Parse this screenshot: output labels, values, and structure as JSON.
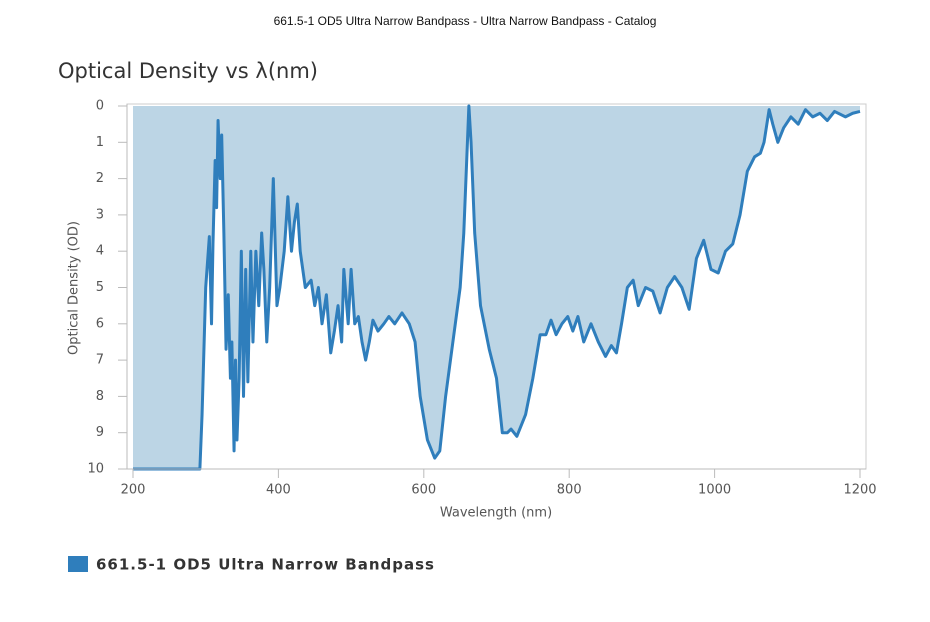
{
  "header": {
    "title": "661.5-1 OD5 Ultra Narrow Bandpass - Ultra Narrow Bandpass - Catalog"
  },
  "chart_data": {
    "type": "area",
    "title": "Optical Density vs λ(nm)",
    "x_label": "Wavelength (nm)",
    "y_label": "Optical Density (OD)",
    "x": [
      200,
      292,
      295,
      300,
      305,
      308,
      310,
      313,
      315,
      317,
      320,
      322,
      325,
      328,
      331,
      334,
      336,
      339,
      341,
      343,
      346,
      349,
      352,
      355,
      358,
      362,
      365,
      369,
      373,
      377,
      380,
      384,
      388,
      393,
      398,
      402,
      408,
      413,
      418,
      422,
      426,
      430,
      437,
      445,
      450,
      455,
      460,
      466,
      472,
      477,
      482,
      487,
      490,
      496,
      500,
      505,
      510,
      515,
      520,
      525,
      530,
      537,
      545,
      552,
      560,
      570,
      580,
      588,
      595,
      605,
      615,
      622,
      630,
      640,
      650,
      655,
      660,
      662,
      665,
      670,
      678,
      690,
      700,
      708,
      715,
      720,
      728,
      740,
      750,
      760,
      768,
      775,
      782,
      790,
      798,
      805,
      812,
      820,
      830,
      840,
      850,
      858,
      865,
      872,
      880,
      888,
      895,
      905,
      915,
      925,
      935,
      945,
      955,
      965,
      975,
      985,
      995,
      1005,
      1015,
      1025,
      1035,
      1045,
      1055,
      1063,
      1068,
      1075,
      1080,
      1087,
      1095,
      1105,
      1115,
      1125,
      1135,
      1145,
      1155,
      1165,
      1180,
      1190,
      1200
    ],
    "series": [
      {
        "name": "661.5-1 OD5 Ultra Narrow Bandpass",
        "color": "#2f7ebc",
        "fill": "#bcd5e5",
        "values": [
          10,
          10,
          8.5,
          5,
          3.6,
          6,
          3.8,
          1.5,
          2.8,
          0.4,
          2,
          0.8,
          3.5,
          6.7,
          5.2,
          7.5,
          6.5,
          9.5,
          7,
          9.2,
          7.5,
          4,
          8,
          4.5,
          7.6,
          4,
          6.5,
          4,
          5.5,
          3.5,
          4.5,
          6.5,
          5,
          2,
          5.5,
          5,
          4,
          2.5,
          4,
          3.2,
          2.7,
          4,
          5,
          4.8,
          5.5,
          5,
          6,
          5.2,
          6.8,
          6.2,
          5.5,
          6.5,
          4.5,
          6,
          4.5,
          6,
          5.8,
          6.5,
          7,
          6.5,
          5.9,
          6.2,
          6,
          5.8,
          6,
          5.7,
          6,
          6.5,
          8,
          9.2,
          9.7,
          9.5,
          8,
          6.5,
          5,
          3.5,
          1,
          0,
          1,
          3.5,
          5.5,
          6.7,
          7.5,
          9,
          9,
          8.9,
          9.1,
          8.5,
          7.5,
          6.3,
          6.3,
          5.9,
          6.3,
          6,
          5.8,
          6.2,
          5.8,
          6.5,
          6,
          6.5,
          6.9,
          6.6,
          6.8,
          6,
          5,
          4.8,
          5.5,
          5,
          5.1,
          5.7,
          5,
          4.7,
          5,
          5.6,
          4.2,
          3.7,
          4.5,
          4.6,
          4,
          3.8,
          3,
          1.8,
          1.4,
          1.3,
          1,
          0.1,
          0.5,
          1,
          0.6,
          0.3,
          0.5,
          0.1,
          0.3,
          0.2,
          0.4,
          0.15,
          0.3,
          0.2,
          0.15
        ]
      }
    ],
    "xlim": [
      200,
      1200
    ],
    "xticks": [
      200,
      400,
      600,
      800,
      1000,
      1200
    ],
    "ylim": [
      0,
      10
    ],
    "yticks": [
      0,
      1,
      2,
      3,
      4,
      5,
      6,
      7,
      8,
      9,
      10
    ],
    "y_inverted": true,
    "grid": false,
    "legend": "bottom-left"
  }
}
